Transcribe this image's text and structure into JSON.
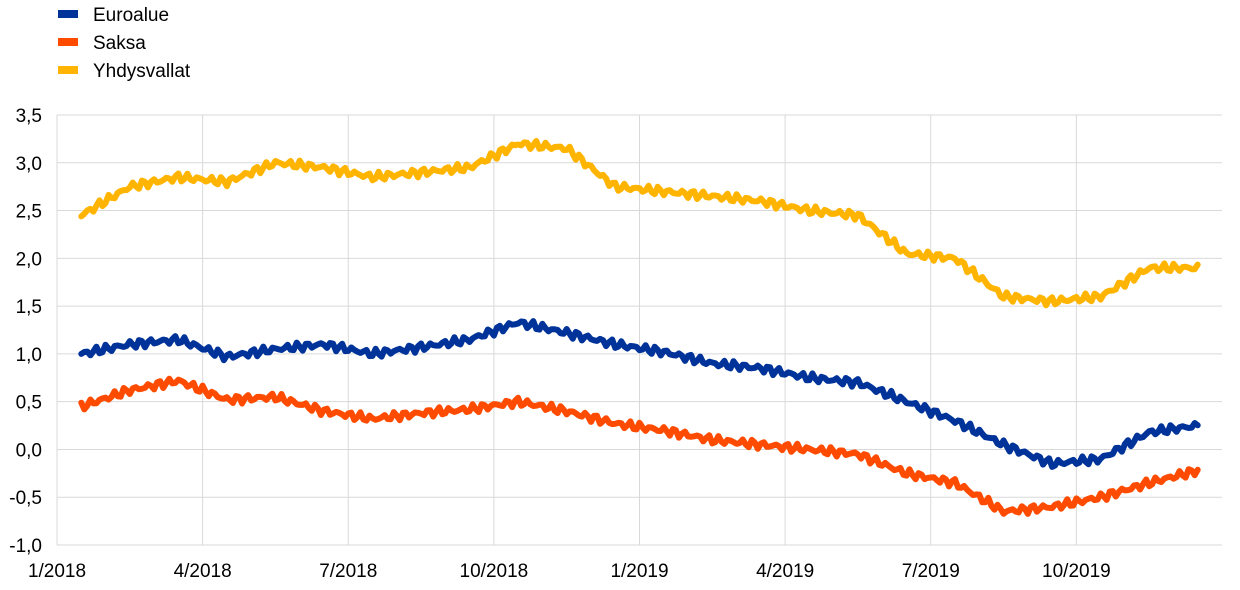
{
  "chart_data": {
    "type": "line",
    "title": "",
    "xlabel": "",
    "ylabel": "",
    "ylim": [
      -1.0,
      3.5
    ],
    "y_ticks": [
      "-1,0",
      "-0,5",
      "0,0",
      "0,5",
      "1,0",
      "1,5",
      "2,0",
      "2,5",
      "3,0",
      "3,5"
    ],
    "y_tick_values": [
      -1.0,
      -0.5,
      0.0,
      0.5,
      1.0,
      1.5,
      2.0,
      2.5,
      3.0,
      3.5
    ],
    "x_range": [
      "2018-01",
      "2019-12"
    ],
    "x_ticks": [
      "1/2018",
      "4/2018",
      "7/2018",
      "10/2018",
      "1/2019",
      "4/2019",
      "7/2019",
      "10/2019"
    ],
    "x_tick_values": [
      "2018-01",
      "2018-04",
      "2018-07",
      "2018-10",
      "2019-01",
      "2019-04",
      "2019-07",
      "2019-10"
    ],
    "grid": true,
    "legend_position": "top-left",
    "x": [
      "2018-01",
      "2018-02",
      "2018-03",
      "2018-04",
      "2018-05",
      "2018-06",
      "2018-07",
      "2018-08",
      "2018-09",
      "2018-10",
      "2018-11",
      "2018-12",
      "2019-01",
      "2019-02",
      "2019-03",
      "2019-04",
      "2019-05",
      "2019-06",
      "2019-07",
      "2019-08",
      "2019-09",
      "2019-10",
      "2019-11",
      "2019-12"
    ],
    "series": [
      {
        "name": "Euroalue",
        "color": "#003399",
        "values": [
          1.0,
          1.1,
          1.15,
          0.97,
          1.05,
          1.1,
          1.0,
          1.07,
          1.15,
          1.33,
          1.22,
          1.1,
          1.02,
          0.9,
          0.85,
          0.75,
          0.7,
          0.5,
          0.3,
          0.05,
          -0.15,
          -0.1,
          0.18,
          0.25
        ]
      },
      {
        "name": "Saksa",
        "color": "#FF4B00",
        "values": [
          0.45,
          0.62,
          0.72,
          0.52,
          0.55,
          0.4,
          0.32,
          0.38,
          0.42,
          0.5,
          0.4,
          0.27,
          0.2,
          0.1,
          0.05,
          0.0,
          -0.05,
          -0.25,
          -0.35,
          -0.65,
          -0.6,
          -0.5,
          -0.35,
          -0.22
        ]
      },
      {
        "name": "Yhdysvallat",
        "color": "#FFB400",
        "values": [
          2.45,
          2.75,
          2.85,
          2.8,
          3.0,
          2.95,
          2.85,
          2.9,
          2.95,
          3.2,
          3.15,
          2.75,
          2.7,
          2.65,
          2.6,
          2.5,
          2.45,
          2.05,
          2.0,
          1.6,
          1.55,
          1.6,
          1.9,
          1.9
        ]
      }
    ]
  }
}
